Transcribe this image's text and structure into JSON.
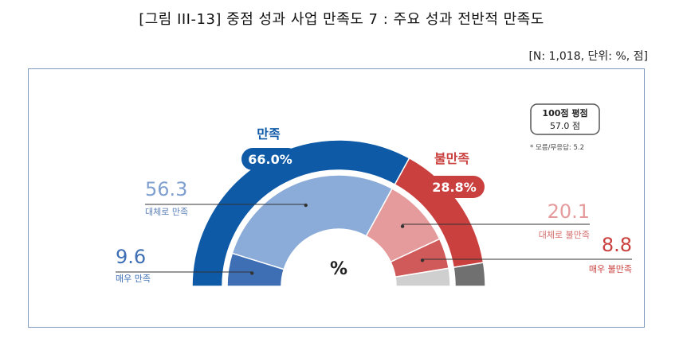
{
  "title": "[그림 III-13] 중점 성과 사업 만족도 7 : 주요 성과 전반적 만족도",
  "note": "[N: 1,018, 단위: %, 점]",
  "colors": {
    "satisfied_outer": "#0e5aa7",
    "dissatisfied_outer": "#c9403f",
    "unknown_outer": "#707070",
    "mostly_satisfied": "#8bacd8",
    "very_satisfied": "#3e6fb5",
    "mostly_dissatisfied": "#e59b9c",
    "very_dissatisfied": "#cf5a59",
    "unknown_inner": "#cfcfcf"
  },
  "score_box": {
    "title": "100점 평점",
    "value": "57.0 점"
  },
  "unknown_note": "* 모름/무응답: 5.2",
  "center_label": "%",
  "chart_data": {
    "type": "pie",
    "subtype": "semicircle-double-donut",
    "outer_ring": [
      {
        "label": "만족",
        "value": 66.0,
        "value_text": "66.0%",
        "color": "#0e5aa7"
      },
      {
        "label": "불만족",
        "value": 28.8,
        "value_text": "28.8%",
        "color": "#c9403f"
      },
      {
        "label": "모름/무응답",
        "value": 5.2,
        "color": "#707070"
      }
    ],
    "inner_ring": [
      {
        "label": "매우 만족",
        "value": 9.6,
        "value_text": "9.6",
        "color": "#3e6fb5"
      },
      {
        "label": "대체로 만족",
        "value": 56.3,
        "value_text": "56.3",
        "color": "#8bacd8"
      },
      {
        "label": "대체로 불만족",
        "value": 20.1,
        "value_text": "20.1",
        "color": "#e59b9c"
      },
      {
        "label": "매우 불만족",
        "value": 8.8,
        "value_text": "8.8",
        "color": "#cf5a59"
      },
      {
        "label": "모름/무응답",
        "value": 5.2,
        "color": "#cfcfcf"
      }
    ]
  }
}
